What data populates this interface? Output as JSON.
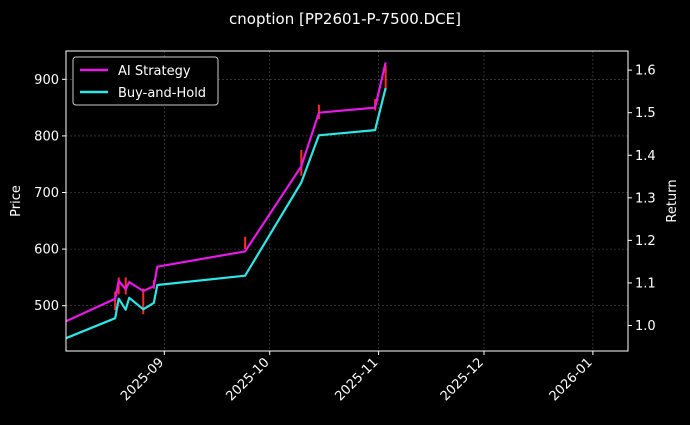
{
  "chart_data": {
    "type": "line",
    "title": "cnoption [PP2601-P-7500.DCE]",
    "xlabel": "",
    "ylabel": "Price",
    "y2label": "Return",
    "xlim": [
      "2025-08-04",
      "2026-01-11"
    ],
    "ylim": [
      420,
      950
    ],
    "y2lim": [
      0.94,
      1.645
    ],
    "x_ticks": [
      "2025-09",
      "2025-10",
      "2025-11",
      "2025-12",
      "2026-01"
    ],
    "y_ticks": [
      500,
      600,
      700,
      800,
      900
    ],
    "y2_ticks": [
      1.0,
      1.1,
      1.2,
      1.3,
      1.4,
      1.5,
      1.6
    ],
    "grid": true,
    "legend_position": "top-left",
    "colors": {
      "background": "#000000",
      "ai_strategy": "#e619e6",
      "buy_and_hold": "#2ee6e6",
      "candles": "#ff2a2a",
      "grid": "#555555",
      "axes": "#ffffff"
    },
    "series": [
      {
        "name": "AI Strategy",
        "axis": "right",
        "x": [
          "2025-08-04",
          "2025-08-18",
          "2025-08-19",
          "2025-08-21",
          "2025-08-22",
          "2025-08-26",
          "2025-08-29",
          "2025-08-30",
          "2025-09-24",
          "2025-10-10",
          "2025-10-15",
          "2025-10-31",
          "2025-11-03"
        ],
        "values": [
          1.01,
          1.063,
          1.105,
          1.085,
          1.102,
          1.081,
          1.092,
          1.138,
          1.174,
          1.374,
          1.5,
          1.512,
          1.618
        ]
      },
      {
        "name": "Buy-and-Hold",
        "axis": "right",
        "x": [
          "2025-08-04",
          "2025-08-18",
          "2025-08-19",
          "2025-08-21",
          "2025-08-22",
          "2025-08-26",
          "2025-08-29",
          "2025-08-30",
          "2025-09-24",
          "2025-10-10",
          "2025-10-15",
          "2025-10-31",
          "2025-11-03"
        ],
        "values": [
          0.97,
          1.017,
          1.063,
          1.037,
          1.065,
          1.038,
          1.053,
          1.095,
          1.117,
          1.336,
          1.447,
          1.459,
          1.558
        ]
      }
    ],
    "price_bars": {
      "axis": "left",
      "x": [
        "2025-08-18",
        "2025-08-19",
        "2025-08-21",
        "2025-08-26",
        "2025-08-29",
        "2025-09-24",
        "2025-10-10",
        "2025-10-15",
        "2025-10-31",
        "2025-11-03"
      ],
      "low": [
        492,
        520,
        520,
        485,
        530,
        600,
        730,
        830,
        845,
        880
      ],
      "high": [
        525,
        550,
        550,
        530,
        545,
        622,
        775,
        855,
        865,
        925
      ]
    }
  }
}
